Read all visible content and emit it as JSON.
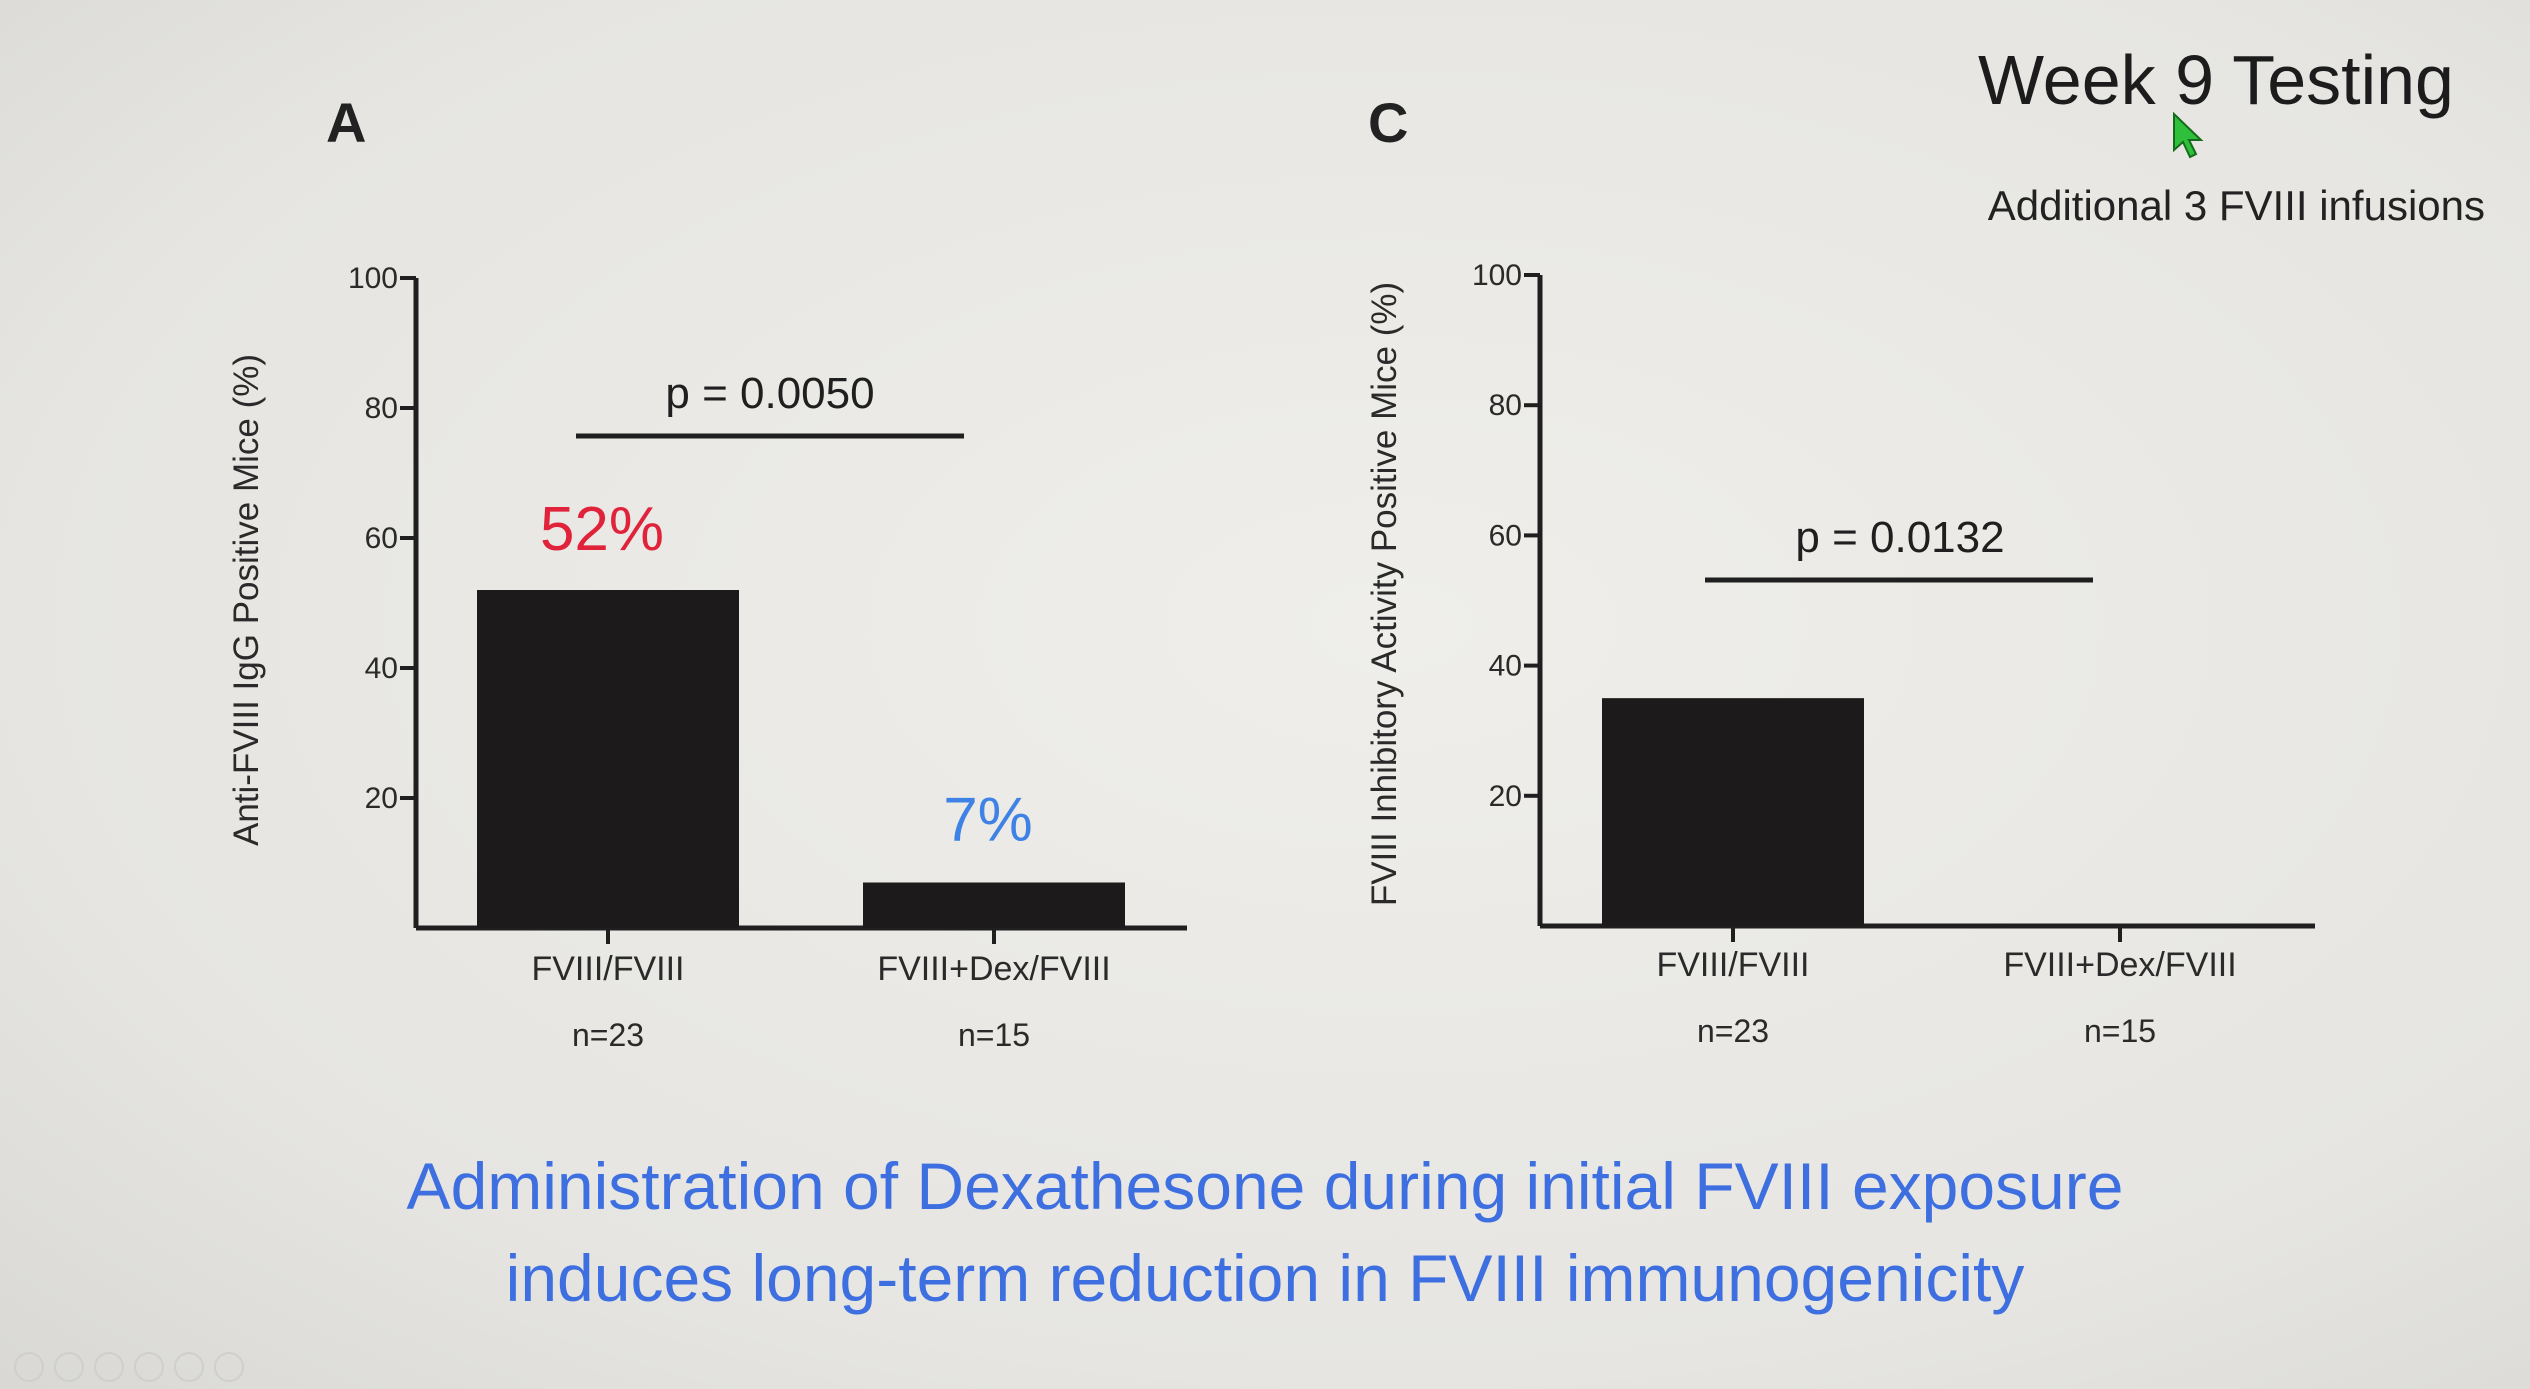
{
  "slide": {
    "title": "Week 9 Testing",
    "subtitle": "Additional 3 FVIII infusions",
    "conclusion_line1": "Administration of Dexathesone during initial FVIII exposure",
    "conclusion_line2": "induces long-term reduction in FVIII immunogenicity",
    "conclusion_color": "#3e6fe0"
  },
  "chart_data": [
    {
      "panel": "A",
      "type": "bar",
      "ylabel": "Anti-FVIII IgG Positive Mice (%)",
      "ylim": [
        0,
        100
      ],
      "yticks": [
        20,
        40,
        60,
        80,
        100
      ],
      "categories": [
        "FVIII/FVIII",
        "FVIII+Dex/FVIII"
      ],
      "n_labels": [
        "n=23",
        "n=15"
      ],
      "values": [
        52,
        7
      ],
      "data_labels": [
        "52%",
        "7%"
      ],
      "data_label_colors": [
        "#e0223a",
        "#3e82e6"
      ],
      "annotation": "p = 0.0050",
      "bar_color": "#1c1a1a"
    },
    {
      "panel": "C",
      "type": "bar",
      "ylabel": "FVIII Inhibitory Activity Positive Mice (%)",
      "ylim": [
        0,
        100
      ],
      "yticks": [
        20,
        40,
        60,
        80,
        100
      ],
      "categories": [
        "FVIII/FVIII",
        "FVIII+Dex/FVIII"
      ],
      "n_labels": [
        "n=23",
        "n=15"
      ],
      "values": [
        35,
        0
      ],
      "data_labels": [],
      "annotation": "p = 0.0132",
      "bar_color": "#1c1a1a"
    }
  ],
  "icons": {
    "cursor": "mouse-pointer-icon",
    "cursor_color": "#2fbf3a"
  }
}
